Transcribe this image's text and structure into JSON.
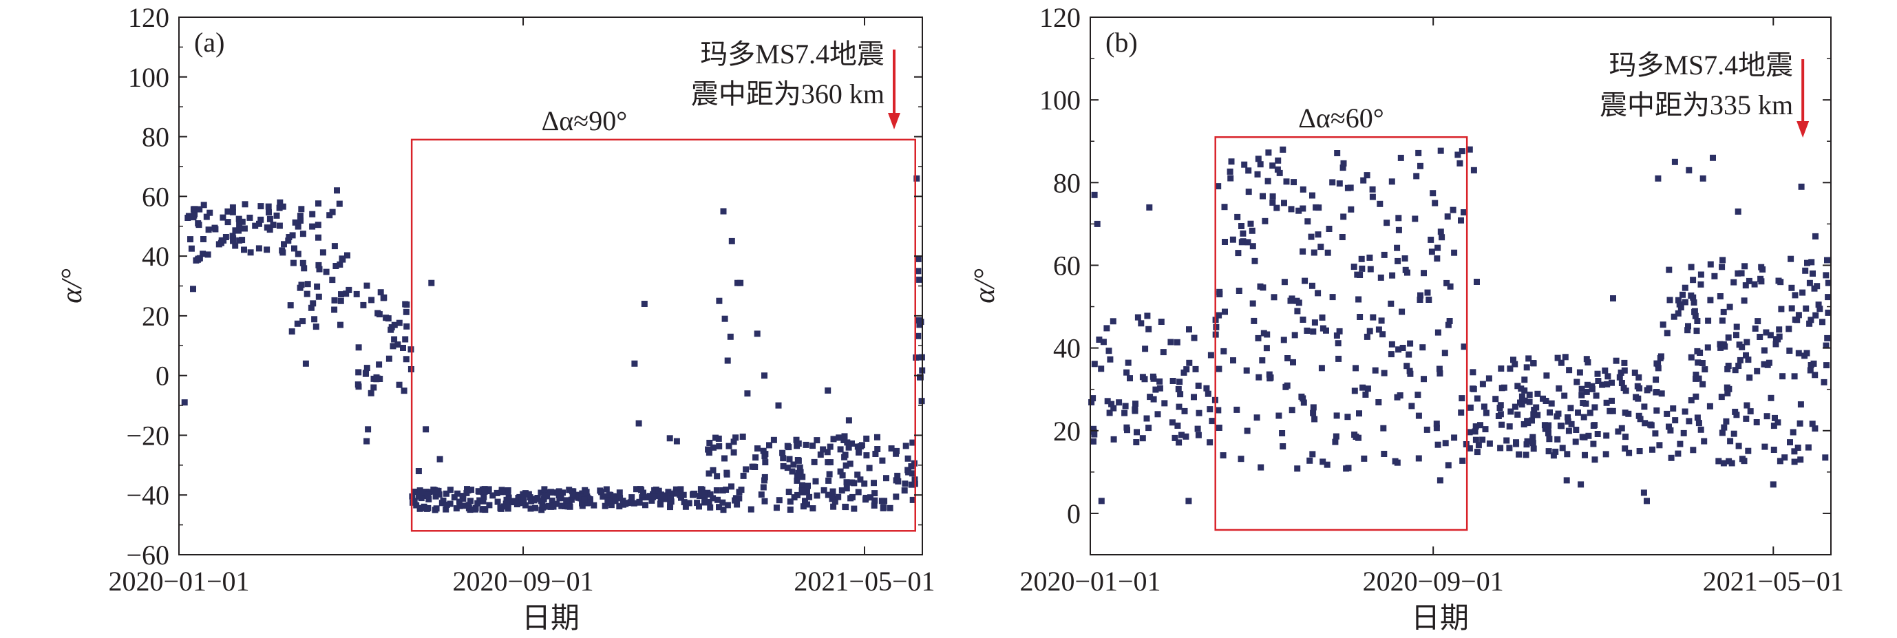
{
  "colors": {
    "marker": "#2b2f63",
    "box": "#d9232a",
    "arrow": "#d9232a",
    "axis": "#231f20"
  },
  "chart_data": [
    {
      "type": "scatter",
      "panel": "(a)",
      "xlabel": "日期",
      "ylabel": "α/°",
      "xlim": [
        "2020-01-01",
        "2021-06-11"
      ],
      "ylim": [
        -60,
        120
      ],
      "x_ticks": [
        "2020-01-01",
        "2020-09-01",
        "2021-05-01"
      ],
      "y_ticks": [
        -60,
        -40,
        -20,
        0,
        20,
        40,
        60,
        80,
        100,
        120
      ],
      "annotation_box": {
        "label": "Δα≈90°",
        "x": [
          "2020-06-14",
          "2021-06-06"
        ],
        "y": [
          -52,
          79
        ]
      },
      "earthquake": {
        "line1": "玛多MS7.4地震",
        "line2": "震中距为360 km",
        "date": "2021-05-22"
      },
      "segments": [
        {
          "start": "2020-01-01",
          "end": "2020-03-15",
          "n": 70,
          "ymin": 38,
          "ymax": 58,
          "outliers": [
            [
              4,
              -9
            ],
            [
              10,
              29
            ]
          ]
        },
        {
          "start": "2020-03-15",
          "end": "2020-05-05",
          "n": 55,
          "ymin": 14,
          "ymax": 58,
          "outliers": [
            [
              38,
              62
            ],
            [
              16,
              4
            ]
          ]
        },
        {
          "start": "2020-05-05",
          "end": "2020-06-14",
          "n": 42,
          "ymin": -6,
          "ymax": 31,
          "outliers": [
            [
              8,
              -22
            ],
            [
              9,
              -18
            ],
            [
              13,
              -4
            ],
            [
              2,
              -3
            ],
            [
              20,
              26
            ]
          ]
        },
        {
          "start": "2020-06-14",
          "end": "2020-09-25",
          "n": 130,
          "ymin": -45,
          "ymax": -38,
          "outliers": [
            [
              5,
              -32
            ],
            [
              10,
              -18
            ],
            [
              14,
              31
            ],
            [
              20,
              -28
            ]
          ]
        },
        {
          "start": "2020-09-25",
          "end": "2021-01-10",
          "n": 140,
          "ymin": -44,
          "ymax": -38,
          "outliers": [
            [
              55,
              4
            ],
            [
              58,
              -16
            ],
            [
              62,
              24
            ],
            [
              80,
              -21
            ],
            [
              85,
              -22
            ]
          ]
        },
        {
          "start": "2021-01-10",
          "end": "2021-06-06",
          "n": 190,
          "ymin": -45,
          "ymax": -20,
          "outliers": [
            [
              8,
              25
            ],
            [
              12,
              19
            ],
            [
              16,
              13
            ],
            [
              11,
              55
            ],
            [
              17,
              45
            ],
            [
              21,
              31
            ],
            [
              23,
              31
            ],
            [
              14,
              5
            ],
            [
              35,
              14
            ],
            [
              40,
              0
            ],
            [
              28,
              -6
            ],
            [
              50,
              -10
            ],
            [
              85,
              -5
            ],
            [
              88,
              -40
            ],
            [
              100,
              -15
            ]
          ]
        },
        {
          "start": "2021-06-06",
          "end": "2021-06-11",
          "n": 10,
          "ymin": -15,
          "ymax": 66,
          "outliers": [
            [
              1,
              66
            ],
            [
              2,
              35
            ],
            [
              3,
              17
            ],
            [
              4,
              18
            ]
          ]
        }
      ]
    },
    {
      "type": "scatter",
      "panel": "(b)",
      "xlabel": "日期",
      "ylabel": "α/°",
      "xlim": [
        "2020-01-01",
        "2021-06-11"
      ],
      "ylim": [
        -10,
        120
      ],
      "x_ticks": [
        "2020-01-01",
        "2020-09-01",
        "2021-05-01"
      ],
      "y_ticks": [
        0,
        20,
        40,
        60,
        80,
        100,
        120
      ],
      "annotation_box": {
        "label": "Δα≈60°",
        "x": [
          "2020-03-30",
          "2020-09-25"
        ],
        "y": [
          -4,
          91
        ]
      },
      "earthquake": {
        "line1": "玛多MS7.4地震",
        "line2": "震中距为335 km",
        "date": "2021-05-22"
      },
      "segments": [
        {
          "start": "2020-01-01",
          "end": "2020-03-30",
          "n": 85,
          "ymin": 17,
          "ymax": 48,
          "outliers": [
            [
              3,
              77
            ],
            [
              5,
              70
            ],
            [
              8,
              3
            ],
            [
              42,
              74
            ],
            [
              70,
              3
            ]
          ]
        },
        {
          "start": "2020-03-30",
          "end": "2020-09-25",
          "n": 260,
          "ymin": 10,
          "ymax": 88,
          "outliers": [
            [
              3,
              53
            ],
            [
              30,
              82
            ],
            [
              160,
              8
            ]
          ]
        },
        {
          "start": "2020-09-25",
          "end": "2020-11-20",
          "n": 75,
          "ymin": 14,
          "ymax": 38,
          "outliers": [
            [
              2,
              88
            ],
            [
              5,
              83
            ],
            [
              7,
              56
            ]
          ]
        },
        {
          "start": "2020-11-20",
          "end": "2021-02-10",
          "n": 110,
          "ymin": 14,
          "ymax": 38,
          "outliers": [
            [
              15,
              8
            ],
            [
              25,
              7
            ],
            [
              35,
              13
            ],
            [
              48,
              52
            ],
            [
              70,
              5
            ],
            [
              72,
              3
            ],
            [
              80,
              81
            ]
          ]
        },
        {
          "start": "2021-02-10",
          "end": "2021-06-11",
          "n": 200,
          "ymin": 12,
          "ymax": 62,
          "outliers": [
            [
              10,
              85
            ],
            [
              20,
              83
            ],
            [
              30,
              81
            ],
            [
              37,
              86
            ],
            [
              55,
              73
            ],
            [
              80,
              7
            ],
            [
              95,
              15
            ],
            [
              100,
              79
            ],
            [
              108,
              58
            ],
            [
              110,
              67
            ]
          ]
        }
      ]
    }
  ]
}
